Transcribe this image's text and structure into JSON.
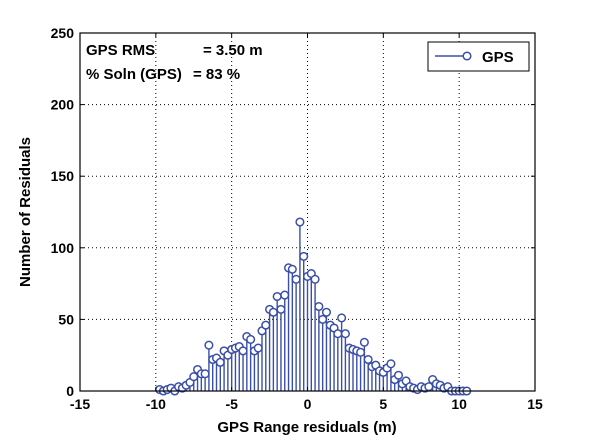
{
  "chart_data": {
    "type": "stem",
    "xlabel": "GPS Range residuals (m)",
    "ylabel": "Number of Residuals",
    "xlim": [
      -15,
      15
    ],
    "ylim": [
      0,
      250
    ],
    "xticks": [
      "-15",
      "-10",
      "-5",
      "0",
      "5",
      "10",
      "15"
    ],
    "yticks": [
      "0",
      "50",
      "100",
      "150",
      "200",
      "250"
    ],
    "grid": true,
    "legend_position": "top-right",
    "series": [
      {
        "name": "GPS",
        "color": "#3b4fa8",
        "x": [
          -9.75,
          -9.5,
          -9.25,
          -9.0,
          -8.75,
          -8.5,
          -8.25,
          -8.0,
          -7.75,
          -7.5,
          -7.25,
          -7.0,
          -6.75,
          -6.5,
          -6.25,
          -6.0,
          -5.75,
          -5.5,
          -5.25,
          -5.0,
          -4.75,
          -4.5,
          -4.25,
          -4.0,
          -3.75,
          -3.5,
          -3.25,
          -3.0,
          -2.75,
          -2.5,
          -2.25,
          -2.0,
          -1.75,
          -1.5,
          -1.25,
          -1.0,
          -0.75,
          -0.5,
          -0.25,
          0.0,
          0.25,
          0.5,
          0.75,
          1.0,
          1.25,
          1.5,
          1.75,
          2.0,
          2.25,
          2.5,
          2.75,
          3.0,
          3.25,
          3.5,
          3.75,
          4.0,
          4.25,
          4.5,
          4.75,
          5.0,
          5.25,
          5.5,
          5.75,
          6.0,
          6.25,
          6.5,
          6.75,
          7.0,
          7.25,
          7.5,
          7.75,
          8.0,
          8.25,
          8.5,
          8.75,
          9.0,
          9.25,
          9.5,
          9.75,
          10.0,
          10.25,
          10.5
        ],
        "y": [
          1,
          0,
          1,
          2,
          0,
          3,
          2,
          4,
          6,
          10,
          15,
          12,
          12,
          32,
          22,
          23,
          20,
          28,
          25,
          29,
          30,
          31,
          28,
          38,
          36,
          28,
          30,
          42,
          46,
          57,
          55,
          66,
          57,
          67,
          86,
          85,
          78,
          118,
          94,
          80,
          82,
          78,
          59,
          50,
          55,
          46,
          44,
          40,
          51,
          40,
          30,
          29,
          28,
          27,
          34,
          22,
          17,
          18,
          14,
          13,
          16,
          19,
          8,
          11,
          5,
          7,
          3,
          2,
          1,
          3,
          2,
          3,
          8,
          5,
          4,
          2,
          3,
          0,
          0,
          0,
          0,
          0
        ]
      }
    ]
  },
  "annotations": {
    "line1_label": "GPS RMS",
    "line1_value": "= 3.50 m",
    "line2_label": "% Soln (GPS)",
    "line2_value": "= 83 %"
  }
}
